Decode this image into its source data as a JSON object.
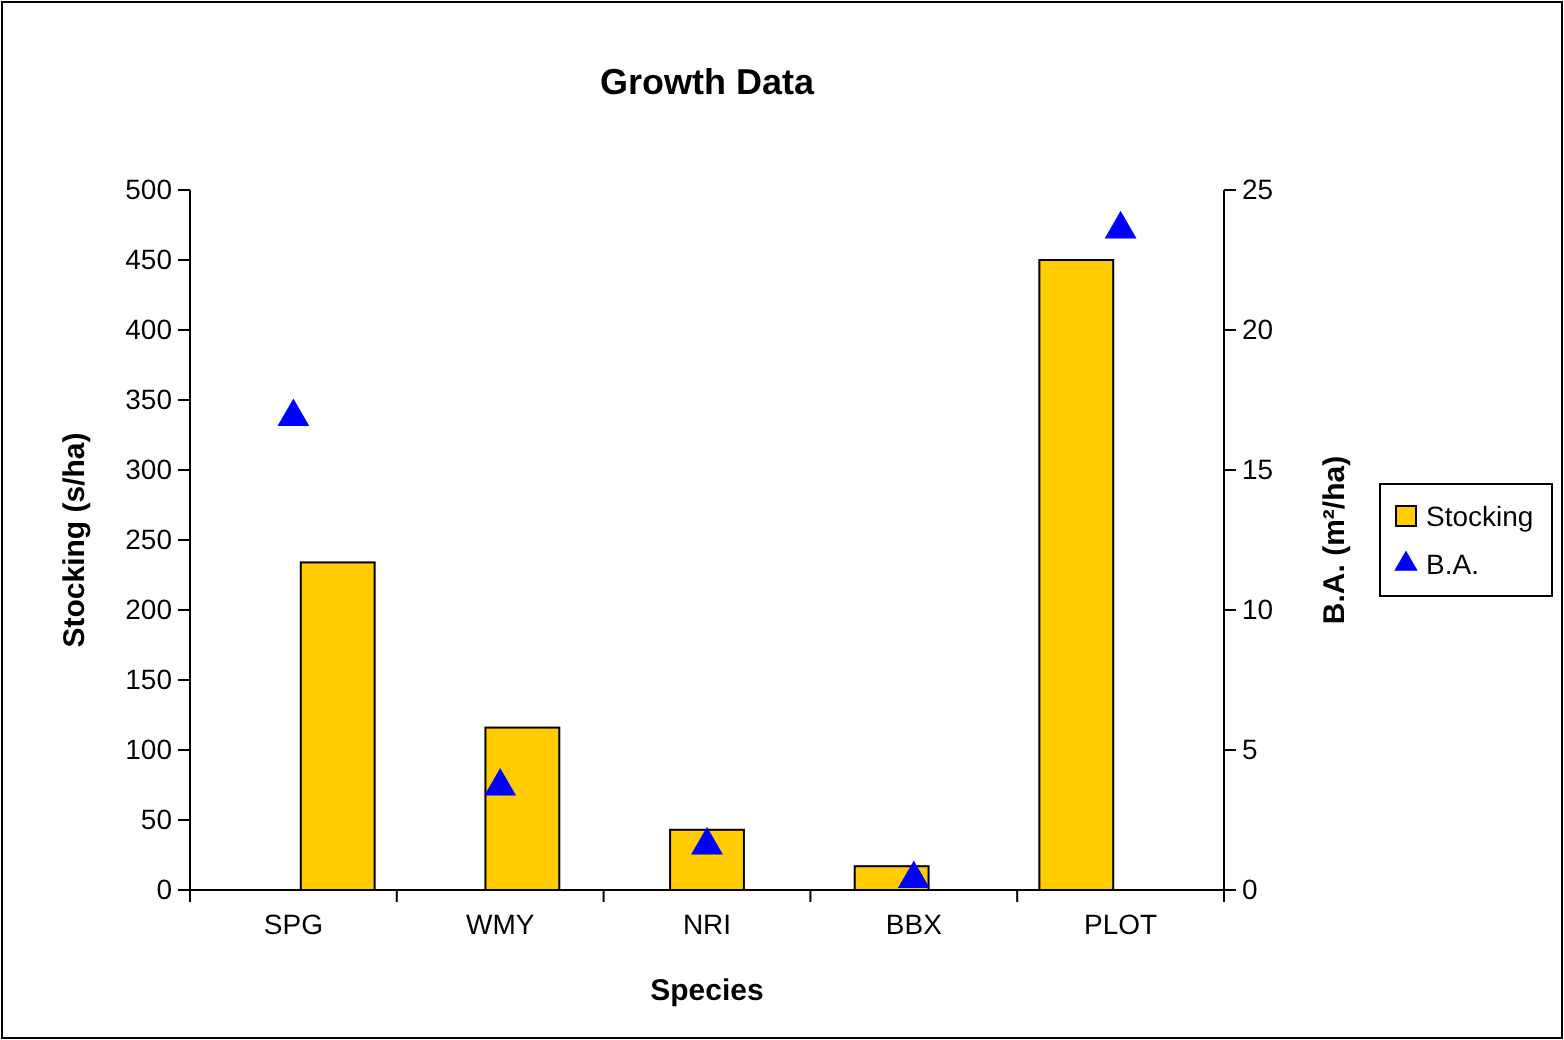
{
  "chart_data": {
    "type": "bar",
    "title": "Growth Data",
    "xlabel": "Species",
    "ylabel": "Stocking (s/ha)",
    "y2label": "B.A. (m²/ha)",
    "categories": [
      "SPG",
      "WMY",
      "NRI",
      "BBX",
      "PLOT"
    ],
    "series": [
      {
        "name": "Stocking",
        "type": "bar",
        "color": "#ffcc00",
        "values": [
          234,
          116,
          43,
          17,
          450
        ]
      },
      {
        "name": "B.A.",
        "type": "scatter",
        "axis": "y2",
        "marker": "triangle",
        "color": "#0000ff",
        "x": [
          "SPG",
          "WMY",
          "NRI",
          "BBX",
          "PLOT"
        ],
        "values": [
          16.9,
          3.7,
          1.6,
          0.4,
          23.6
        ]
      }
    ],
    "ylim": [
      0,
      500
    ],
    "yticks": [
      0,
      50,
      100,
      150,
      200,
      250,
      300,
      350,
      400,
      450,
      500
    ],
    "y2lim": [
      0,
      25
    ],
    "y2ticks": [
      0,
      5,
      10,
      15,
      20,
      25
    ],
    "grid": false,
    "legend": "right"
  }
}
